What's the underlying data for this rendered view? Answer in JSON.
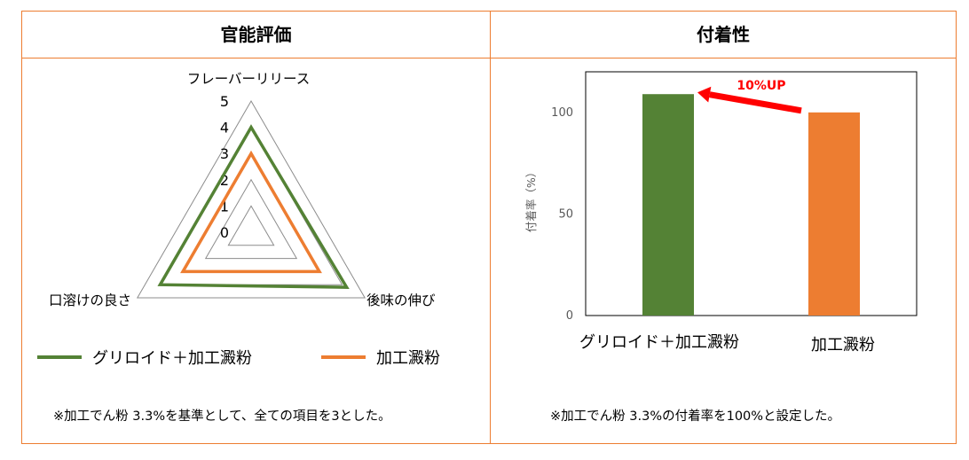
{
  "panels": {
    "left_title": "官能評価",
    "right_title": "付着性"
  },
  "left_note": "※加工でん粉 3.3%を基準として、全ての項目を3とした。",
  "right_note": "※加工でん粉 3.3%の付着率を100%と設定した。",
  "legend": [
    {
      "label": "グリロイド＋加工澱粉",
      "color": "#548235"
    },
    {
      "label": "加工澱粉",
      "color": "#ED7D31"
    }
  ],
  "colors": {
    "border": "#ED7D31",
    "green": "#548235",
    "orange": "#ED7D31",
    "arrow": "#FF0000"
  },
  "chart_data": [
    {
      "type": "radar",
      "axes": [
        "フレーバーリリース",
        "後味の伸び",
        "口溶けの良さ"
      ],
      "ticks": [
        "0",
        "1",
        "2",
        "3",
        "4",
        "5"
      ],
      "range": [
        0,
        5
      ],
      "series": [
        {
          "name": "グリロイド＋加工澱粉",
          "values": [
            4,
            4.2,
            4
          ]
        },
        {
          "name": "加工澱粉",
          "values": [
            3,
            3,
            3
          ]
        }
      ]
    },
    {
      "type": "bar",
      "ylabel": "付着率（%）",
      "yticks": [
        "0",
        "50",
        "100"
      ],
      "ylim": [
        0,
        120
      ],
      "categories": [
        "グリロイド＋加工澱粉",
        "加工澱粉"
      ],
      "values": [
        109,
        100
      ],
      "annotation": "10%UP"
    }
  ]
}
